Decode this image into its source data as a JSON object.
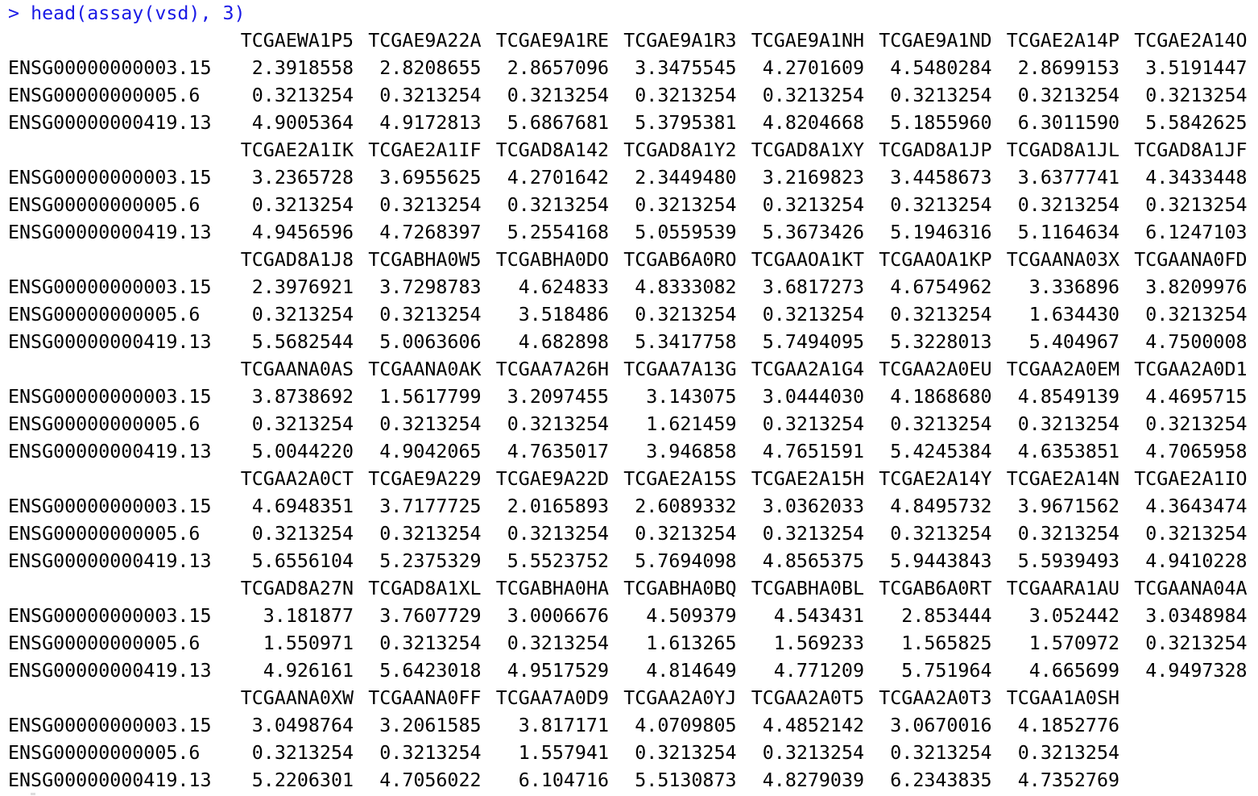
{
  "prompt": "> ",
  "command": "head(assay(vsd), 3)",
  "row_names": [
    "ENSG00000000003.15",
    "ENSG00000000005.6",
    "ENSG00000000419.13"
  ],
  "blocks": [
    {
      "columns": [
        "TCGAEWA1P5",
        "TCGAE9A22A",
        "TCGAE9A1RE",
        "TCGAE9A1R3",
        "TCGAE9A1NH",
        "TCGAE9A1ND",
        "TCGAE2A14P",
        "TCGAE2A14O"
      ],
      "rows": [
        [
          "2.3918558",
          "2.8208655",
          "2.8657096",
          "3.3475545",
          "4.2701609",
          "4.5480284",
          "2.8699153",
          "3.5191447"
        ],
        [
          "0.3213254",
          "0.3213254",
          "0.3213254",
          "0.3213254",
          "0.3213254",
          "0.3213254",
          "0.3213254",
          "0.3213254"
        ],
        [
          "4.9005364",
          "4.9172813",
          "5.6867681",
          "5.3795381",
          "4.8204668",
          "5.1855960",
          "6.3011590",
          "5.5842625"
        ]
      ]
    },
    {
      "columns": [
        "TCGAE2A1IK",
        "TCGAE2A1IF",
        "TCGAD8A142",
        "TCGAD8A1Y2",
        "TCGAD8A1XY",
        "TCGAD8A1JP",
        "TCGAD8A1JL",
        "TCGAD8A1JF"
      ],
      "rows": [
        [
          "3.2365728",
          "3.6955625",
          "4.2701642",
          "2.3449480",
          "3.2169823",
          "3.4458673",
          "3.6377741",
          "4.3433448"
        ],
        [
          "0.3213254",
          "0.3213254",
          "0.3213254",
          "0.3213254",
          "0.3213254",
          "0.3213254",
          "0.3213254",
          "0.3213254"
        ],
        [
          "4.9456596",
          "4.7268397",
          "5.2554168",
          "5.0559539",
          "5.3673426",
          "5.1946316",
          "5.1164634",
          "6.1247103"
        ]
      ]
    },
    {
      "columns": [
        "TCGAD8A1J8",
        "TCGABHA0W5",
        "TCGABHA0DO",
        "TCGAB6A0RO",
        "TCGAAOA1KT",
        "TCGAAOA1KP",
        "TCGAANA03X",
        "TCGAANA0FD"
      ],
      "rows": [
        [
          "2.3976921",
          "3.7298783",
          "4.624833",
          "4.8333082",
          "3.6817273",
          "4.6754962",
          "3.336896",
          "3.8209976"
        ],
        [
          "0.3213254",
          "0.3213254",
          "3.518486",
          "0.3213254",
          "0.3213254",
          "0.3213254",
          "1.634430",
          "0.3213254"
        ],
        [
          "5.5682544",
          "5.0063606",
          "4.682898",
          "5.3417758",
          "5.7494095",
          "5.3228013",
          "5.404967",
          "4.7500008"
        ]
      ]
    },
    {
      "columns": [
        "TCGAANA0AS",
        "TCGAANA0AK",
        "TCGAA7A26H",
        "TCGAA7A13G",
        "TCGAA2A1G4",
        "TCGAA2A0EU",
        "TCGAA2A0EM",
        "TCGAA2A0D1"
      ],
      "rows": [
        [
          "3.8738692",
          "1.5617799",
          "3.2097455",
          "3.143075",
          "3.0444030",
          "4.1868680",
          "4.8549139",
          "4.4695715"
        ],
        [
          "0.3213254",
          "0.3213254",
          "0.3213254",
          "1.621459",
          "0.3213254",
          "0.3213254",
          "0.3213254",
          "0.3213254"
        ],
        [
          "5.0044220",
          "4.9042065",
          "4.7635017",
          "3.946858",
          "4.7651591",
          "5.4245384",
          "4.6353851",
          "4.7065958"
        ]
      ]
    },
    {
      "columns": [
        "TCGAA2A0CT",
        "TCGAE9A229",
        "TCGAE9A22D",
        "TCGAE2A15S",
        "TCGAE2A15H",
        "TCGAE2A14Y",
        "TCGAE2A14N",
        "TCGAE2A1IO"
      ],
      "rows": [
        [
          "4.6948351",
          "3.7177725",
          "2.0165893",
          "2.6089332",
          "3.0362033",
          "4.8495732",
          "3.9671562",
          "4.3643474"
        ],
        [
          "0.3213254",
          "0.3213254",
          "0.3213254",
          "0.3213254",
          "0.3213254",
          "0.3213254",
          "0.3213254",
          "0.3213254"
        ],
        [
          "5.6556104",
          "5.2375329",
          "5.5523752",
          "5.7694098",
          "4.8565375",
          "5.9443843",
          "5.5939493",
          "4.9410228"
        ]
      ]
    },
    {
      "columns": [
        "TCGAD8A27N",
        "TCGAD8A1XL",
        "TCGABHA0HA",
        "TCGABHA0BQ",
        "TCGABHA0BL",
        "TCGAB6A0RT",
        "TCGAARA1AU",
        "TCGAANA04A"
      ],
      "rows": [
        [
          "3.181877",
          "3.7607729",
          "3.0006676",
          "4.509379",
          "4.543431",
          "2.853444",
          "3.052442",
          "3.0348984"
        ],
        [
          "1.550971",
          "0.3213254",
          "0.3213254",
          "1.613265",
          "1.569233",
          "1.565825",
          "1.570972",
          "0.3213254"
        ],
        [
          "4.926161",
          "5.6423018",
          "4.9517529",
          "4.814649",
          "4.771209",
          "5.751964",
          "4.665699",
          "4.9497328"
        ]
      ]
    },
    {
      "columns": [
        "TCGAANA0XW",
        "TCGAANA0FF",
        "TCGAA7A0D9",
        "TCGAA2A0YJ",
        "TCGAA2A0T5",
        "TCGAA2A0T3",
        "TCGAA1A0SH"
      ],
      "rows": [
        [
          "3.0498764",
          "3.2061585",
          "3.817171",
          "4.0709805",
          "4.4852142",
          "3.0670016",
          "4.1852776"
        ],
        [
          "0.3213254",
          "0.3213254",
          "1.557941",
          "0.3213254",
          "0.3213254",
          "0.3213254",
          "0.3213254"
        ],
        [
          "5.2206301",
          "4.7056022",
          "6.104716",
          "5.5130873",
          "4.8279039",
          "6.2343835",
          "4.7352769"
        ]
      ]
    }
  ]
}
